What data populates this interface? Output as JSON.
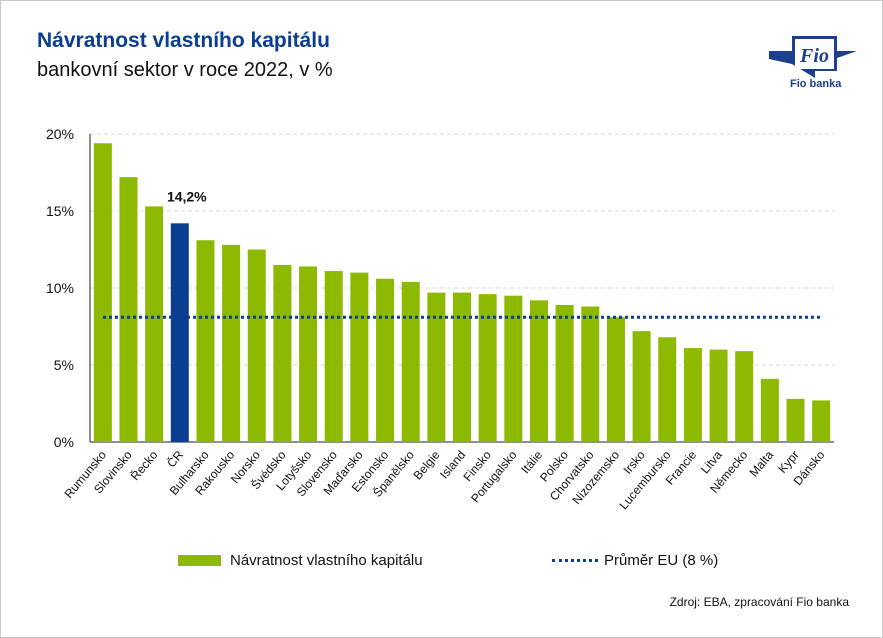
{
  "header": {
    "title": "Návratnost vlastního kapitálu",
    "subtitle": "bankovní sektor v roce 2022, v %"
  },
  "logo": {
    "mark_text": "Fio",
    "name": "Fio banka"
  },
  "colors": {
    "bar": "#8dba00",
    "highlight": "#0b3d91",
    "average": "#0b3d91",
    "grid": "#d9d9d9",
    "title": "#0b3d91"
  },
  "chart_data": {
    "type": "bar",
    "categories": [
      "Rumunsko",
      "Slovinsko",
      "Řecko",
      "ČR",
      "Bulharsko",
      "Rakousko",
      "Norsko",
      "Švédsko",
      "Lotyšsko",
      "Slovensko",
      "Maďarsko",
      "Estonsko",
      "Španělsko",
      "Belgie",
      "Island",
      "Finsko",
      "Portugalsko",
      "Itálie",
      "Polsko",
      "Chorvatsko",
      "Nizozemsko",
      "Irsko",
      "Lucembursko",
      "Francie",
      "Litva",
      "Německo",
      "Malta",
      "Kypr",
      "Dánsko"
    ],
    "series": [
      {
        "name": "Návratnost vlastního kapitálu",
        "values": [
          19.4,
          17.2,
          15.3,
          14.2,
          13.1,
          12.8,
          12.5,
          11.5,
          11.4,
          11.1,
          11.0,
          10.6,
          10.4,
          9.7,
          9.7,
          9.6,
          9.5,
          9.2,
          8.9,
          8.8,
          8.1,
          7.2,
          6.8,
          6.1,
          6.0,
          5.9,
          4.1,
          2.8,
          2.7
        ]
      }
    ],
    "highlight": {
      "category": "ČR",
      "label": "14,2%"
    },
    "average": {
      "name": "Průměr EU (8 %)",
      "value": 8.1
    },
    "yticks": [
      "0%",
      "5%",
      "10%",
      "15%",
      "20%"
    ],
    "ylim": [
      0,
      20
    ],
    "legend": "bottom",
    "grid": true
  },
  "footer": {
    "source": "Zdroj: EBA, zpracování Fio banka"
  }
}
